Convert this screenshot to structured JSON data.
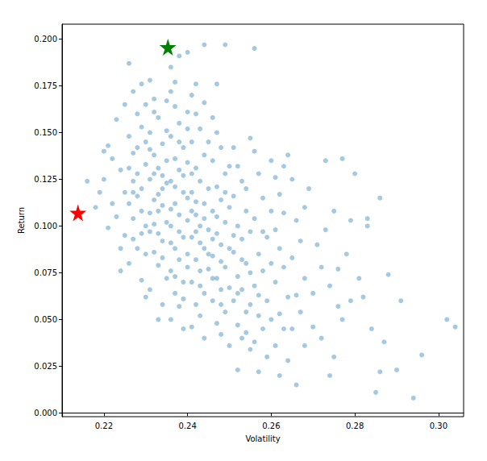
{
  "chart_data": {
    "type": "scatter",
    "x_label": "Volatility",
    "y_label": "Return",
    "xlim": [
      0.21,
      0.306
    ],
    "ylim": [
      -0.002,
      0.208
    ],
    "xticks": [
      0.22,
      0.24,
      0.26,
      0.28,
      {
        "value": 0.3,
        "label": "0.30"
      }
    ],
    "yticks": [
      {
        "value": 0,
        "label": "0.000"
      },
      0.025,
      {
        "value": 0.05,
        "label": "0.050"
      },
      0.075,
      {
        "value": 0.1,
        "label": "0.100"
      },
      0.125,
      {
        "value": 0.15,
        "label": "0.150"
      },
      0.175,
      {
        "value": 0.2,
        "label": "0.200"
      }
    ],
    "grid": false,
    "series": [
      {
        "color": "#1f77b4",
        "marker": "circle",
        "x": [
          0.219,
          0.218,
          0.22,
          0.221,
          0.222,
          0.221,
          0.223,
          0.223,
          0.224,
          0.224,
          0.225,
          0.225,
          0.222,
          0.225,
          0.224,
          0.216,
          0.22,
          0.226,
          0.227,
          0.228,
          0.226,
          0.227,
          0.228,
          0.229,
          0.226,
          0.227,
          0.229,
          0.228,
          0.226,
          0.229,
          0.23,
          0.23,
          0.229,
          0.23,
          0.227,
          0.228,
          0.229,
          0.23,
          0.227,
          0.23,
          0.226,
          0.228,
          0.23,
          0.229,
          0.227,
          0.231,
          0.232,
          0.233,
          0.231,
          0.234,
          0.232,
          0.233,
          0.231,
          0.234,
          0.232,
          0.233,
          0.235,
          0.231,
          0.234,
          0.232,
          0.233,
          0.235,
          0.231,
          0.234,
          0.233,
          0.232,
          0.234,
          0.235,
          0.231,
          0.233,
          0.235,
          0.232,
          0.234,
          0.235,
          0.236,
          0.232,
          0.235,
          0.233,
          0.231,
          0.234,
          0.236,
          0.237,
          0.238,
          0.236,
          0.239,
          0.237,
          0.238,
          0.236,
          0.239,
          0.237,
          0.238,
          0.236,
          0.239,
          0.237,
          0.238,
          0.236,
          0.239,
          0.237,
          0.238,
          0.236,
          0.239,
          0.238,
          0.24,
          0.237,
          0.239,
          0.236,
          0.24,
          0.238,
          0.24,
          0.236,
          0.24,
          0.237,
          0.24,
          0.239,
          0.24,
          0.238,
          0.24,
          0.24,
          0.237,
          0.241,
          0.242,
          0.243,
          0.241,
          0.244,
          0.242,
          0.243,
          0.241,
          0.244,
          0.242,
          0.243,
          0.241,
          0.244,
          0.242,
          0.243,
          0.241,
          0.244,
          0.242,
          0.243,
          0.241,
          0.244,
          0.244,
          0.245,
          0.245,
          0.245,
          0.242,
          0.243,
          0.241,
          0.244,
          0.245,
          0.243,
          0.242,
          0.241,
          0.245,
          0.244,
          0.242,
          0.246,
          0.247,
          0.248,
          0.246,
          0.249,
          0.247,
          0.248,
          0.246,
          0.249,
          0.247,
          0.248,
          0.246,
          0.249,
          0.247,
          0.248,
          0.246,
          0.249,
          0.247,
          0.248,
          0.25,
          0.249,
          0.247,
          0.25,
          0.25,
          0.25,
          0.246,
          0.248,
          0.247,
          0.249,
          0.25,
          0.248,
          0.246,
          0.251,
          0.252,
          0.253,
          0.251,
          0.254,
          0.252,
          0.253,
          0.251,
          0.254,
          0.252,
          0.253,
          0.251,
          0.254,
          0.252,
          0.253,
          0.255,
          0.254,
          0.255,
          0.255,
          0.255,
          0.251,
          0.253,
          0.252,
          0.254,
          0.252,
          0.255,
          0.256,
          0.256,
          0.257,
          0.258,
          0.256,
          0.259,
          0.257,
          0.258,
          0.256,
          0.259,
          0.257,
          0.258,
          0.256,
          0.259,
          0.257,
          0.26,
          0.26,
          0.26,
          0.26,
          0.258,
          0.257,
          0.261,
          0.262,
          0.263,
          0.261,
          0.264,
          0.262,
          0.263,
          0.261,
          0.264,
          0.262,
          0.263,
          0.261,
          0.264,
          0.262,
          0.266,
          0.267,
          0.265,
          0.268,
          0.266,
          0.267,
          0.265,
          0.268,
          0.266,
          0.269,
          0.27,
          0.27,
          0.265,
          0.268,
          0.263,
          0.271,
          0.272,
          0.273,
          0.274,
          0.275,
          0.276,
          0.277,
          0.278,
          0.272,
          0.275,
          0.277,
          0.279,
          0.279,
          0.274,
          0.273,
          0.276,
          0.28,
          0.281,
          0.282,
          0.283,
          0.284,
          0.285,
          0.286,
          0.286,
          0.288,
          0.29,
          0.291,
          0.294,
          0.296,
          0.302,
          0.304,
          0.283,
          0.287
        ],
        "values": [
          0.118,
          0.11,
          0.125,
          0.099,
          0.136,
          0.143,
          0.157,
          0.105,
          0.088,
          0.13,
          0.165,
          0.118,
          0.112,
          0.095,
          0.076,
          0.124,
          0.14,
          0.187,
          0.172,
          0.16,
          0.148,
          0.139,
          0.128,
          0.12,
          0.112,
          0.104,
          0.096,
          0.088,
          0.08,
          0.071,
          0.062,
          0.145,
          0.153,
          0.133,
          0.124,
          0.116,
          0.108,
          0.1,
          0.093,
          0.085,
          0.131,
          0.142,
          0.165,
          0.176,
          0.118,
          0.178,
          0.168,
          0.158,
          0.15,
          0.144,
          0.138,
          0.131,
          0.125,
          0.12,
          0.114,
          0.108,
          0.102,
          0.097,
          0.092,
          0.086,
          0.079,
          0.072,
          0.066,
          0.058,
          0.05,
          0.128,
          0.111,
          0.135,
          0.141,
          0.117,
          0.123,
          0.101,
          0.083,
          0.151,
          0.185,
          0.161,
          0.167,
          0.096,
          0.107,
          0.127,
          0.172,
          0.164,
          0.155,
          0.148,
          0.142,
          0.136,
          0.13,
          0.124,
          0.118,
          0.112,
          0.106,
          0.1,
          0.094,
          0.088,
          0.082,
          0.076,
          0.07,
          0.064,
          0.057,
          0.05,
          0.045,
          0.191,
          0.193,
          0.121,
          0.127,
          0.109,
          0.115,
          0.097,
          0.103,
          0.091,
          0.085,
          0.073,
          0.078,
          0.061,
          0.134,
          0.145,
          0.152,
          0.161,
          0.177,
          0.17,
          0.16,
          0.152,
          0.145,
          0.138,
          0.131,
          0.124,
          0.118,
          0.112,
          0.106,
          0.1,
          0.094,
          0.088,
          0.082,
          0.076,
          0.07,
          0.064,
          0.058,
          0.052,
          0.046,
          0.04,
          0.197,
          0.12,
          0.098,
          0.077,
          0.113,
          0.091,
          0.128,
          0.104,
          0.145,
          0.068,
          0.097,
          0.108,
          0.085,
          0.166,
          0.176,
          0.158,
          0.15,
          0.142,
          0.135,
          0.128,
          0.121,
          0.114,
          0.108,
          0.102,
          0.096,
          0.09,
          0.084,
          0.078,
          0.072,
          0.066,
          0.06,
          0.054,
          0.048,
          0.042,
          0.036,
          0.197,
          0.176,
          0.11,
          0.088,
          0.067,
          0.093,
          0.081,
          0.105,
          0.118,
          0.132,
          0.058,
          0.072,
          0.142,
          0.132,
          0.124,
          0.116,
          0.108,
          0.1,
          0.093,
          0.086,
          0.08,
          0.073,
          0.066,
          0.06,
          0.054,
          0.047,
          0.04,
          0.034,
          0.12,
          0.097,
          0.075,
          0.058,
          0.095,
          0.082,
          0.064,
          0.043,
          0.023,
          0.147,
          0.195,
          0.14,
          0.128,
          0.115,
          0.104,
          0.094,
          0.085,
          0.076,
          0.068,
          0.06,
          0.052,
          0.045,
          0.038,
          0.03,
          0.022,
          0.135,
          0.108,
          0.08,
          0.05,
          0.097,
          0.063,
          0.126,
          0.117,
          0.107,
          0.098,
          0.138,
          0.088,
          0.078,
          0.07,
          0.062,
          0.053,
          0.045,
          0.036,
          0.028,
          0.02,
          0.103,
          0.092,
          0.083,
          0.072,
          0.063,
          0.054,
          0.045,
          0.036,
          0.015,
          0.12,
          0.064,
          0.046,
          0.125,
          0.11,
          0.132,
          0.09,
          0.078,
          0.135,
          0.068,
          0.108,
          0.057,
          0.136,
          0.085,
          0.04,
          0.03,
          0.05,
          0.06,
          0.103,
          0.02,
          0.098,
          0.077,
          0.128,
          0.072,
          0.062,
          0.104,
          0.045,
          0.011,
          0.022,
          0.115,
          0.074,
          0.023,
          0.06,
          0.008,
          0.031,
          0.05,
          0.046,
          0.1,
          0.038
        ]
      },
      {
        "color": "#008000",
        "marker": "star",
        "x": [
          0.2353
        ],
        "values": [
          0.1957
        ]
      },
      {
        "color": "#ff0000",
        "marker": "star",
        "x": [
          0.2138
        ],
        "values": [
          0.1071
        ]
      }
    ]
  }
}
